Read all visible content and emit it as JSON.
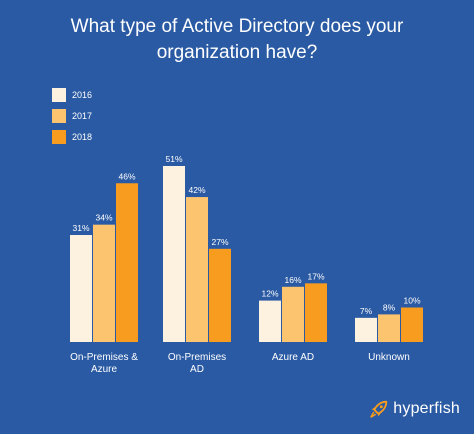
{
  "title_lines": [
    "What type of Active Directory does your",
    "organization have?"
  ],
  "brand": {
    "name": "hyperfish",
    "icon": "rocket-icon"
  },
  "colors": {
    "background": "#2a5aa3",
    "series": [
      "#fdf1df",
      "#fcc46f",
      "#f79c1f"
    ]
  },
  "chart_data": {
    "type": "bar",
    "title": "What type of Active Directory does your organization have?",
    "categories": [
      [
        "On-Premises &",
        "Azure"
      ],
      [
        "On-Premises",
        "AD"
      ],
      [
        "Azure AD"
      ],
      [
        "Unknown"
      ]
    ],
    "series": [
      {
        "name": "2016",
        "values": [
          31,
          51,
          12,
          7
        ]
      },
      {
        "name": "2017",
        "values": [
          34,
          42,
          16,
          8
        ]
      },
      {
        "name": "2018",
        "values": [
          46,
          27,
          17,
          10
        ]
      }
    ],
    "value_format": "%",
    "ylim": [
      0,
      51
    ],
    "grid": false,
    "legend": "top-left"
  }
}
